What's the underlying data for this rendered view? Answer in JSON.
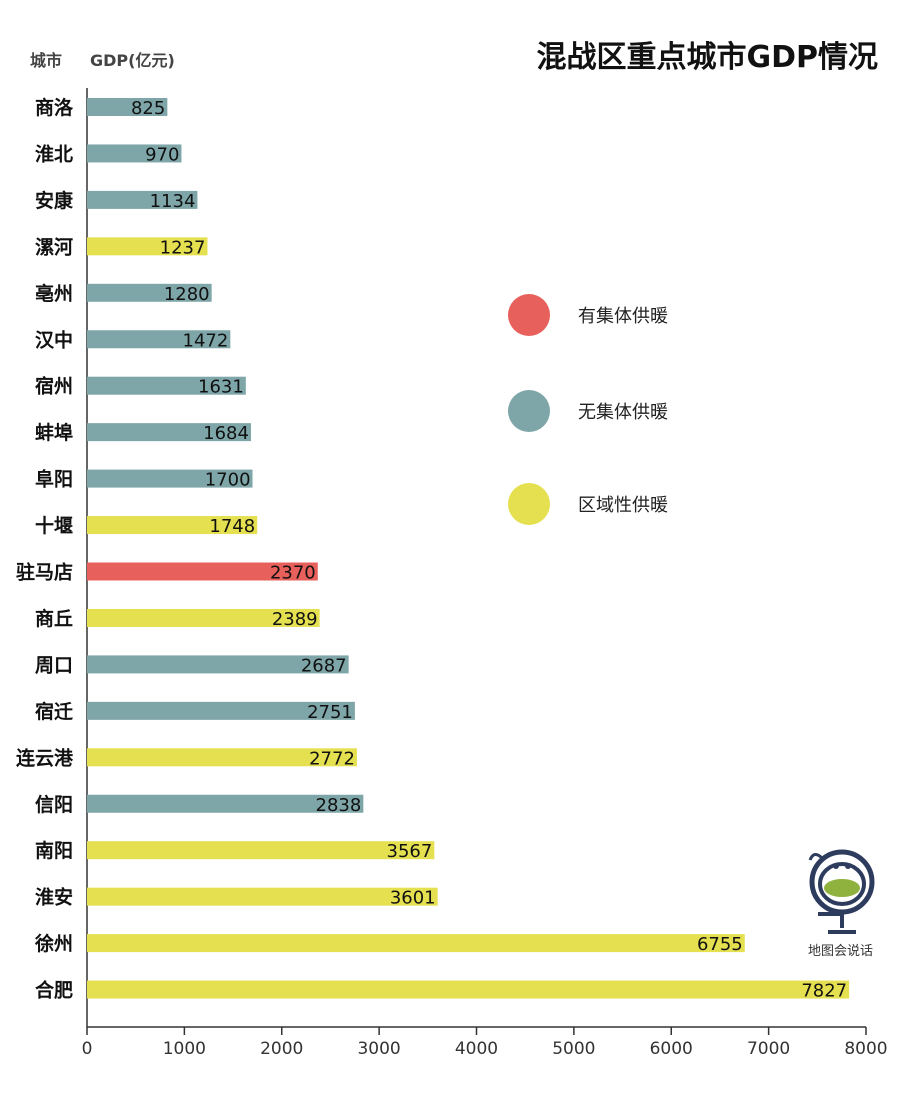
{
  "title": "混战区重点城市GDP情况",
  "headers": {
    "city": "城市",
    "gdp": "GDP(亿元)"
  },
  "colors": {
    "有集体供暖": "#e8605b",
    "无集体供暖": "#7ea6a9",
    "区域性供暖": "#e5e04f",
    "axis": "#333333"
  },
  "legend": [
    {
      "label": "有集体供暖",
      "color": "#e8605b"
    },
    {
      "label": "无集体供暖",
      "color": "#7ea6a9"
    },
    {
      "label": "区域性供暖",
      "color": "#e5e04f"
    }
  ],
  "logo": {
    "text": "地图会说话",
    "icon": "globe-character-icon"
  },
  "chart_data": {
    "type": "bar",
    "orientation": "horizontal",
    "title": "混战区重点城市GDP情况",
    "xlabel": "",
    "ylabel": "",
    "xlim": [
      0,
      8000
    ],
    "x_ticks": [
      0,
      1000,
      2000,
      3000,
      4000,
      5000,
      6000,
      7000,
      8000
    ],
    "grid": false,
    "legend_position": "right",
    "categories": [
      "商洛",
      "淮北",
      "安康",
      "漯河",
      "亳州",
      "汉中",
      "宿州",
      "蚌埠",
      "阜阳",
      "十堰",
      "驻马店",
      "商丘",
      "周口",
      "宿迁",
      "连云港",
      "信阳",
      "南阳",
      "淮安",
      "徐州",
      "合肥"
    ],
    "values": [
      825,
      970,
      1134,
      1237,
      1280,
      1472,
      1631,
      1684,
      1700,
      1748,
      2370,
      2389,
      2687,
      2751,
      2772,
      2838,
      3567,
      3601,
      6755,
      7827
    ],
    "heating": [
      "无集体供暖",
      "无集体供暖",
      "无集体供暖",
      "区域性供暖",
      "无集体供暖",
      "无集体供暖",
      "无集体供暖",
      "无集体供暖",
      "无集体供暖",
      "区域性供暖",
      "有集体供暖",
      "区域性供暖",
      "无集体供暖",
      "无集体供暖",
      "区域性供暖",
      "无集体供暖",
      "区域性供暖",
      "区域性供暖",
      "区域性供暖",
      "区域性供暖"
    ]
  }
}
